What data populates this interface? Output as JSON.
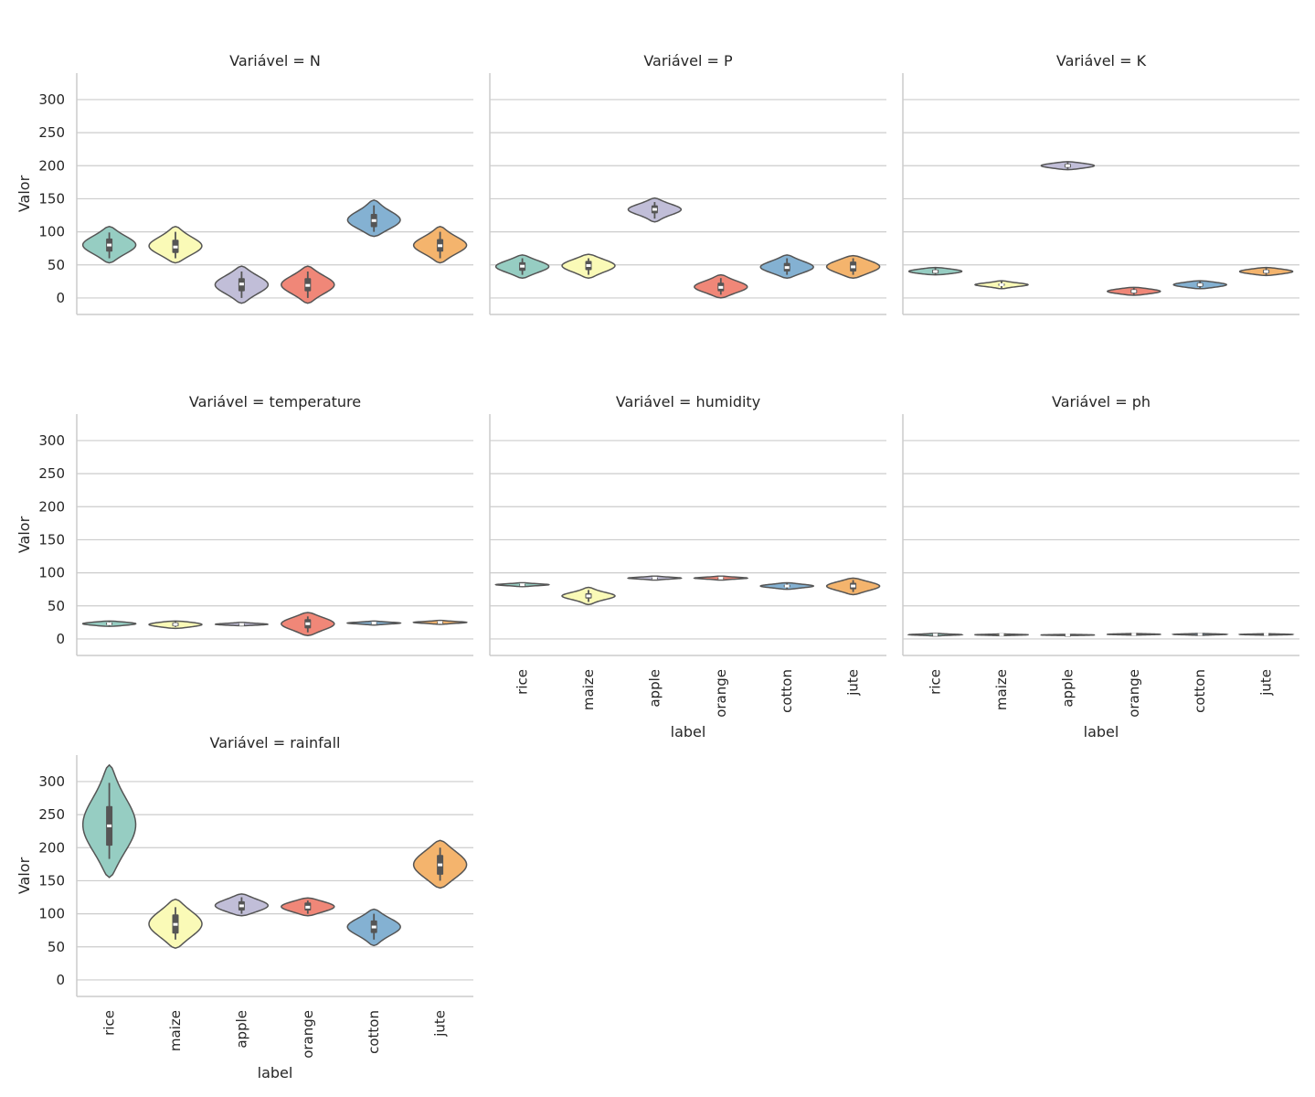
{
  "chart_data": {
    "type": "violin",
    "title_prefix": "Variável = ",
    "ylabel": "Valor",
    "xlabel": "label",
    "categories": [
      "rice",
      "maize",
      "apple",
      "orange",
      "cotton",
      "jute"
    ],
    "ylim": [
      -25,
      340
    ],
    "yticks": [
      0,
      50,
      100,
      150,
      200,
      250,
      300
    ],
    "grid": true,
    "colors": [
      "#96cdc2",
      "#fafab7",
      "#c1bed8",
      "#f08778",
      "#84b1d2",
      "#f4b46d"
    ],
    "panels": [
      {
        "variable": "N",
        "medians": [
          80,
          77,
          21,
          19,
          117,
          79
        ],
        "q1": [
          70,
          68,
          10,
          10,
          107,
          70
        ],
        "q3": [
          90,
          88,
          30,
          30,
          127,
          89
        ],
        "wlo": [
          60,
          60,
          0,
          0,
          100,
          60
        ],
        "whi": [
          99,
          100,
          40,
          40,
          140,
          100
        ],
        "vmin": [
          53,
          53,
          -8,
          -8,
          93,
          53
        ],
        "vmax": [
          108,
          108,
          48,
          48,
          148,
          108
        ]
      },
      {
        "variable": "P",
        "medians": [
          48,
          49,
          134,
          16,
          46,
          47
        ],
        "q1": [
          41,
          42,
          128,
          10,
          40,
          40
        ],
        "q3": [
          54,
          56,
          140,
          23,
          53,
          55
        ],
        "wlo": [
          35,
          35,
          120,
          5,
          35,
          35
        ],
        "whi": [
          60,
          60,
          145,
          30,
          60,
          60
        ],
        "vmin": [
          30,
          30,
          115,
          0,
          30,
          30
        ],
        "vmax": [
          65,
          66,
          151,
          35,
          65,
          64
        ]
      },
      {
        "variable": "K",
        "medians": [
          40,
          20,
          200,
          10,
          20,
          40
        ],
        "q1": [
          37,
          18,
          197,
          7,
          17,
          37
        ],
        "q3": [
          43,
          22,
          203,
          13,
          23,
          43
        ],
        "wlo": [
          35,
          15,
          195,
          5,
          15,
          35
        ],
        "whi": [
          45,
          25,
          205,
          15,
          25,
          45
        ],
        "vmin": [
          35,
          14,
          194,
          4,
          14,
          34
        ],
        "vmax": [
          46,
          26,
          206,
          16,
          26,
          46
        ]
      },
      {
        "variable": "temperature",
        "medians": [
          23,
          22,
          22,
          23,
          24,
          25
        ],
        "q1": [
          21,
          19,
          21,
          16,
          23,
          24
        ],
        "q3": [
          25,
          25,
          23,
          30,
          25,
          26
        ],
        "wlo": [
          20,
          18,
          21,
          10,
          22,
          23
        ],
        "whi": [
          26,
          26,
          24,
          34,
          26,
          27
        ],
        "vmin": [
          19,
          16,
          20,
          5,
          21,
          22
        ],
        "vmax": [
          27,
          27,
          25,
          40,
          27,
          28
        ]
      },
      {
        "variable": "humidity",
        "medians": [
          82,
          65,
          92,
          92,
          80,
          80
        ],
        "q1": [
          81,
          61,
          91,
          91,
          78,
          75
        ],
        "q3": [
          83,
          69,
          93,
          93,
          82,
          85
        ],
        "wlo": [
          80,
          56,
          90,
          90,
          76,
          71
        ],
        "whi": [
          84,
          74,
          94,
          94,
          84,
          89
        ],
        "vmin": [
          79,
          52,
          89,
          89,
          75,
          67
        ],
        "vmax": [
          85,
          78,
          95,
          95,
          85,
          92
        ]
      },
      {
        "variable": "ph",
        "medians": [
          6.4,
          6.3,
          5.9,
          7.0,
          6.9,
          6.7
        ],
        "q1": [
          5.8,
          5.9,
          5.8,
          6.5,
          6.5,
          6.3
        ],
        "q3": [
          7.0,
          6.7,
          6.1,
          7.4,
          7.3,
          7.1
        ],
        "wlo": [
          5.0,
          5.5,
          5.5,
          6.0,
          6.0,
          6.0
        ],
        "whi": [
          7.8,
          7.0,
          6.5,
          8.0,
          8.0,
          7.5
        ],
        "vmin": [
          4.5,
          5.0,
          5.2,
          5.8,
          5.5,
          5.8
        ],
        "vmax": [
          8.5,
          7.5,
          6.8,
          8.2,
          8.3,
          7.8
        ]
      },
      {
        "variable": "rainfall",
        "medians": [
          233,
          84,
          112,
          110,
          80,
          174
        ],
        "q1": [
          203,
          70,
          105,
          105,
          71,
          159
        ],
        "q3": [
          263,
          99,
          119,
          117,
          90,
          189
        ],
        "wlo": [
          183,
          61,
          100,
          100,
          61,
          150
        ],
        "whi": [
          298,
          110,
          125,
          120,
          100,
          200
        ],
        "vmin": [
          155,
          48,
          97,
          97,
          52,
          139
        ],
        "vmax": [
          325,
          122,
          130,
          124,
          107,
          211
        ]
      }
    ]
  }
}
